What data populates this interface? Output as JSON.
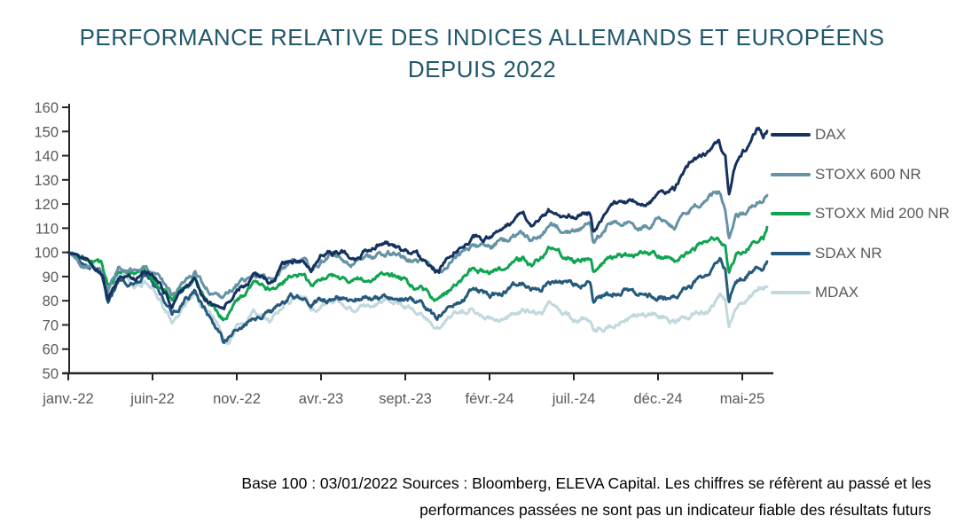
{
  "title": {
    "line1": "PERFORMANCE RELATIVE DES INDICES ALLEMANDS ET EUROPÉENS",
    "line2": "DEPUIS 2022"
  },
  "footer": {
    "line1": "Base 100 : 03/01/2022 Sources : Bloomberg, ELEVA Capital. Les chiffres se réfèrent au passé et les",
    "line2": "performances passées ne sont pas un indicateur fiable des résultats futurs"
  },
  "colors": {
    "title_text": "#20586c",
    "axis_text": "#595959",
    "axis_line": "#262626",
    "background": "#ffffff"
  },
  "chart_data": {
    "type": "line",
    "title": "PERFORMANCE RELATIVE DES INDICES ALLEMANDS ET EUROPÉENS DEPUIS 2022",
    "xlabel": "",
    "ylabel": "",
    "ylim": [
      50,
      160
    ],
    "grid": false,
    "legend_position": "right",
    "axis_color": "#262626",
    "x_unit": "months since 03/01/2022 (base 100)",
    "x_tick_labels": [
      "janv.-22",
      "juin-22",
      "nov.-22",
      "avr.-23",
      "sept.-23",
      "févr.-24",
      "juil.-24",
      "déc.-24",
      "mai-25"
    ],
    "x_tick_months": [
      0,
      5,
      10,
      15,
      20,
      25,
      30,
      35,
      40
    ],
    "y_ticks": [
      50,
      60,
      70,
      80,
      90,
      100,
      110,
      120,
      130,
      140,
      150,
      160
    ],
    "series": [
      {
        "name": "DAX",
        "id": "dax",
        "color": "#14315f",
        "points": [
          [
            0,
            100
          ],
          [
            1,
            97.4
          ],
          [
            2,
            91
          ],
          [
            2.35,
            80.8
          ],
          [
            3,
            90.7
          ],
          [
            4,
            88.7
          ],
          [
            4.5,
            92.5
          ],
          [
            5,
            90.6
          ],
          [
            5.5,
            86.5
          ],
          [
            6,
            80.5
          ],
          [
            6.15,
            77.8
          ],
          [
            7,
            84.9
          ],
          [
            7.5,
            87.6
          ],
          [
            8,
            80.8
          ],
          [
            9,
            76.3
          ],
          [
            9.2,
            75.5
          ],
          [
            9.6,
            79.5
          ],
          [
            10,
            83.4
          ],
          [
            11,
            90.6
          ],
          [
            11.5,
            89.5
          ],
          [
            12,
            87.7
          ],
          [
            13,
            95.2
          ],
          [
            14,
            96.7
          ],
          [
            14.4,
            92.8
          ],
          [
            15,
            98.4
          ],
          [
            16,
            100.2
          ],
          [
            17,
            98.6
          ],
          [
            18,
            101.7
          ],
          [
            18.5,
            103.8
          ],
          [
            19,
            103.5
          ],
          [
            20,
            100.4
          ],
          [
            21,
            96.9
          ],
          [
            21.8,
            92.6
          ],
          [
            22,
            93.2
          ],
          [
            23,
            102.1
          ],
          [
            24,
            105.5
          ],
          [
            25,
            106.4
          ],
          [
            26,
            111.3
          ],
          [
            27,
            116.4
          ],
          [
            27.5,
            112.3
          ],
          [
            28,
            112.9
          ],
          [
            28.5,
            117.7
          ],
          [
            29,
            116.4
          ],
          [
            30,
            114.8
          ],
          [
            31,
            116.5
          ],
          [
            31.15,
            109.5
          ],
          [
            32,
            119
          ],
          [
            33,
            121.7
          ],
          [
            34,
            120.1
          ],
          [
            35,
            123.6
          ],
          [
            36,
            125.3
          ],
          [
            37,
            136.8
          ],
          [
            38,
            142
          ],
          [
            38.6,
            147
          ],
          [
            39,
            139.5
          ],
          [
            39.2,
            124
          ],
          [
            39.6,
            137
          ],
          [
            40,
            141.6
          ],
          [
            40.5,
            145
          ],
          [
            41,
            151
          ],
          [
            41.25,
            148
          ],
          [
            41.5,
            151.3
          ]
        ]
      },
      {
        "name": "STOXX 600 NR",
        "id": "stoxx-600-nr",
        "color": "#6592a4",
        "points": [
          [
            0,
            100
          ],
          [
            1,
            95.9
          ],
          [
            2,
            92.8
          ],
          [
            2.35,
            84.5
          ],
          [
            3,
            93.5
          ],
          [
            4,
            92.6
          ],
          [
            4.5,
            94
          ],
          [
            5,
            91.7
          ],
          [
            5.5,
            88
          ],
          [
            6,
            84.4
          ],
          [
            6.15,
            82.5
          ],
          [
            7,
            88.4
          ],
          [
            7.5,
            92
          ],
          [
            8,
            86.4
          ],
          [
            9,
            81
          ],
          [
            9.2,
            79.8
          ],
          [
            9.6,
            83
          ],
          [
            10,
            86
          ],
          [
            11,
            92
          ],
          [
            11.5,
            91
          ],
          [
            12,
            89
          ],
          [
            13,
            94.9
          ],
          [
            14,
            96.7
          ],
          [
            14.4,
            91.7
          ],
          [
            15,
            96.4
          ],
          [
            16,
            98.5
          ],
          [
            17,
            95.4
          ],
          [
            18,
            97.9
          ],
          [
            19,
            99.9
          ],
          [
            20,
            97.4
          ],
          [
            21,
            95.8
          ],
          [
            21.8,
            92.2
          ],
          [
            22,
            92.4
          ],
          [
            23,
            98.5
          ],
          [
            24,
            101.5
          ],
          [
            25,
            102.5
          ],
          [
            26,
            104.5
          ],
          [
            27,
            108
          ],
          [
            27.5,
            106
          ],
          [
            28,
            107
          ],
          [
            28.5,
            110.5
          ],
          [
            29,
            110
          ],
          [
            30,
            109
          ],
          [
            31,
            110.5
          ],
          [
            31.15,
            104
          ],
          [
            32,
            111.5
          ],
          [
            33,
            112.5
          ],
          [
            34,
            111
          ],
          [
            35,
            113.5
          ],
          [
            36,
            111
          ],
          [
            37,
            117.5
          ],
          [
            38,
            122.5
          ],
          [
            38.6,
            123.5
          ],
          [
            39,
            117
          ],
          [
            39.2,
            106.5
          ],
          [
            39.6,
            114
          ],
          [
            40,
            116
          ],
          [
            40.5,
            118.5
          ],
          [
            41,
            121.5
          ],
          [
            41.25,
            120.5
          ],
          [
            41.5,
            124.5
          ]
        ]
      },
      {
        "name": "STOXX Mid 200 NR",
        "id": "stoxx-mid-200-nr",
        "color": "#10a452",
        "points": [
          [
            0,
            100
          ],
          [
            1,
            96.8
          ],
          [
            2,
            93.5
          ],
          [
            2.35,
            85.5
          ],
          [
            3,
            92
          ],
          [
            4,
            91.5
          ],
          [
            4.5,
            93
          ],
          [
            5,
            90
          ],
          [
            5.5,
            86
          ],
          [
            6,
            82.5
          ],
          [
            6.15,
            81
          ],
          [
            7,
            86
          ],
          [
            7.5,
            89
          ],
          [
            8,
            83
          ],
          [
            9,
            75.5
          ],
          [
            9.2,
            73.5
          ],
          [
            9.6,
            76
          ],
          [
            10,
            79
          ],
          [
            11,
            86.5
          ],
          [
            12,
            84
          ],
          [
            13,
            90
          ],
          [
            14,
            91
          ],
          [
            14.4,
            86
          ],
          [
            15,
            87.5
          ],
          [
            16,
            90.5
          ],
          [
            17,
            88.5
          ],
          [
            18,
            89
          ],
          [
            19,
            90.5
          ],
          [
            20,
            87
          ],
          [
            21,
            85.5
          ],
          [
            21.8,
            80
          ],
          [
            22,
            80.5
          ],
          [
            23,
            86.5
          ],
          [
            24,
            92.5
          ],
          [
            25,
            91.5
          ],
          [
            26,
            93
          ],
          [
            27,
            97.5
          ],
          [
            27.5,
            95.5
          ],
          [
            28,
            96.5
          ],
          [
            28.5,
            100.5
          ],
          [
            29,
            100
          ],
          [
            30,
            97
          ],
          [
            31,
            99.5
          ],
          [
            31.15,
            93
          ],
          [
            32,
            97.5
          ],
          [
            33,
            99
          ],
          [
            34,
            100.5
          ],
          [
            35,
            99
          ],
          [
            36,
            96.5
          ],
          [
            37,
            100
          ],
          [
            38,
            104
          ],
          [
            38.6,
            105.5
          ],
          [
            39,
            102
          ],
          [
            39.2,
            92
          ],
          [
            39.6,
            99
          ],
          [
            40,
            100.5
          ],
          [
            40.5,
            104
          ],
          [
            41,
            107.5
          ],
          [
            41.25,
            107
          ],
          [
            41.5,
            111.3
          ]
        ]
      },
      {
        "name": "SDAX NR",
        "id": "sdax-nr",
        "color": "#255a7c",
        "points": [
          [
            0,
            100
          ],
          [
            1,
            96.5
          ],
          [
            2,
            90.5
          ],
          [
            2.35,
            78.5
          ],
          [
            3,
            88
          ],
          [
            4,
            87
          ],
          [
            4.5,
            89.5
          ],
          [
            5,
            86.5
          ],
          [
            5.5,
            81.5
          ],
          [
            6,
            78
          ],
          [
            6.15,
            73.5
          ],
          [
            7,
            81
          ],
          [
            7.5,
            84.5
          ],
          [
            8,
            78.5
          ],
          [
            9,
            66
          ],
          [
            9.2,
            62.5
          ],
          [
            9.6,
            65.5
          ],
          [
            10,
            68
          ],
          [
            11,
            73.5
          ],
          [
            12,
            74.5
          ],
          [
            13,
            80.5
          ],
          [
            14,
            82.5
          ],
          [
            14.4,
            77.5
          ],
          [
            15,
            79.5
          ],
          [
            16,
            82
          ],
          [
            17,
            81
          ],
          [
            18,
            81.5
          ],
          [
            19,
            82.5
          ],
          [
            20,
            80.5
          ],
          [
            21,
            79
          ],
          [
            21.8,
            72.5
          ],
          [
            22,
            73.5
          ],
          [
            23,
            79
          ],
          [
            24,
            84
          ],
          [
            25,
            82
          ],
          [
            26,
            83.5
          ],
          [
            27,
            87
          ],
          [
            27.5,
            85.5
          ],
          [
            28,
            86
          ],
          [
            28.5,
            89.5
          ],
          [
            29,
            88.5
          ],
          [
            30,
            86.5
          ],
          [
            31,
            88
          ],
          [
            31.15,
            80.5
          ],
          [
            32,
            83.5
          ],
          [
            33,
            84.5
          ],
          [
            34,
            83
          ],
          [
            35,
            82
          ],
          [
            36,
            82.5
          ],
          [
            37,
            86
          ],
          [
            38,
            91.5
          ],
          [
            38.7,
            96.5
          ],
          [
            39,
            93.5
          ],
          [
            39.2,
            81
          ],
          [
            39.6,
            88
          ],
          [
            40,
            90
          ],
          [
            40.5,
            92.5
          ],
          [
            41,
            95
          ],
          [
            41.25,
            94
          ],
          [
            41.5,
            97
          ]
        ]
      },
      {
        "name": "MDAX",
        "id": "mdax",
        "color": "#c2d8de",
        "points": [
          [
            0,
            100
          ],
          [
            1,
            95.9
          ],
          [
            2,
            90.3
          ],
          [
            2.35,
            81.5
          ],
          [
            3,
            90.5
          ],
          [
            4,
            85.8
          ],
          [
            4.5,
            88
          ],
          [
            5,
            85.2
          ],
          [
            5.5,
            80
          ],
          [
            6,
            73.9
          ],
          [
            6.15,
            72.5
          ],
          [
            7,
            78.7
          ],
          [
            7.5,
            81.9
          ],
          [
            8,
            76.2
          ],
          [
            9,
            66.6
          ],
          [
            9.2,
            64.5
          ],
          [
            9.5,
            61.5
          ],
          [
            10,
            69.3
          ],
          [
            11,
            75.7
          ],
          [
            12,
            71.6
          ],
          [
            13,
            80.1
          ],
          [
            14,
            81.5
          ],
          [
            14.4,
            77
          ],
          [
            15,
            77.8
          ],
          [
            16,
            79.8
          ],
          [
            17,
            76.9
          ],
          [
            18,
            77.7
          ],
          [
            19,
            81.3
          ],
          [
            20,
            78.2
          ],
          [
            21,
            74.9
          ],
          [
            21.8,
            68.7
          ],
          [
            22,
            69.5
          ],
          [
            23,
            74.6
          ],
          [
            24,
            77.4
          ],
          [
            25,
            73.4
          ],
          [
            26,
            74
          ],
          [
            27,
            77.2
          ],
          [
            27.5,
            74.5
          ],
          [
            28,
            74.8
          ],
          [
            28.5,
            78.2
          ],
          [
            29,
            76.6
          ],
          [
            30,
            72.3
          ],
          [
            31,
            71.3
          ],
          [
            31.15,
            67.5
          ],
          [
            32,
            69.9
          ],
          [
            33,
            74.2
          ],
          [
            34,
            74.4
          ],
          [
            35,
            74.4
          ],
          [
            36,
            71.5
          ],
          [
            37,
            75
          ],
          [
            38,
            77
          ],
          [
            38.7,
            83.5
          ],
          [
            39,
            81.9
          ],
          [
            39.2,
            69.8
          ],
          [
            39.6,
            78
          ],
          [
            40,
            80.7
          ],
          [
            40.5,
            82.5
          ],
          [
            41,
            85.9
          ],
          [
            41.25,
            84.5
          ],
          [
            41.5,
            86
          ]
        ]
      }
    ]
  }
}
